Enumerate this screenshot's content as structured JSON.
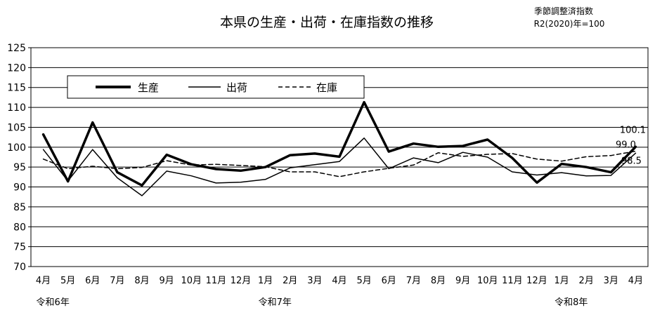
{
  "chart_data": {
    "type": "line",
    "title": "本県の生産・出荷・在庫指数の推移",
    "note_lines": [
      "季節調整済指数",
      "R2(2020)年=100"
    ],
    "ylim": [
      70,
      125
    ],
    "yticks": [
      70,
      75,
      80,
      85,
      90,
      95,
      100,
      105,
      110,
      115,
      120,
      125
    ],
    "grid": true,
    "legend_position": "top-left",
    "categories": [
      "4月",
      "5月",
      "6月",
      "7月",
      "8月",
      "9月",
      "10月",
      "11月",
      "12月",
      "1月",
      "2月",
      "3月",
      "4月",
      "5月",
      "6月",
      "7月",
      "8月",
      "9月",
      "10月",
      "11月",
      "12月",
      "1月",
      "2月",
      "3月",
      "4月"
    ],
    "year_labels": [
      {
        "index": 0,
        "label": "令和6年"
      },
      {
        "index": 9,
        "label": "令和7年"
      },
      {
        "index": 21,
        "label": "令和8年"
      }
    ],
    "series": [
      {
        "name": "生産",
        "style": "bold",
        "color": "#000000",
        "values": [
          103.2,
          91.4,
          106.2,
          93.7,
          90.4,
          98.1,
          95.7,
          94.5,
          94.1,
          95.0,
          98.0,
          98.4,
          97.6,
          111.3,
          98.9,
          100.9,
          100.1,
          100.3,
          101.9,
          97.3,
          91.1,
          95.8,
          95.0,
          93.7,
          100.1
        ]
      },
      {
        "name": "出荷",
        "style": "thin",
        "color": "#000000",
        "values": [
          99.4,
          91.5,
          99.4,
          92.3,
          87.8,
          94.0,
          92.8,
          91.0,
          91.2,
          91.9,
          94.8,
          95.6,
          96.4,
          102.3,
          94.6,
          97.3,
          96.1,
          98.7,
          97.5,
          93.8,
          93.0,
          93.6,
          92.8,
          92.9,
          98.5
        ]
      },
      {
        "name": "在庫",
        "style": "dashed",
        "color": "#000000",
        "values": [
          97.0,
          94.6,
          95.2,
          94.6,
          94.9,
          96.6,
          95.5,
          95.7,
          95.4,
          95.1,
          93.8,
          93.8,
          92.6,
          93.8,
          94.7,
          95.5,
          98.6,
          97.7,
          98.2,
          98.4,
          97.0,
          96.5,
          97.6,
          97.9,
          99.0
        ]
      }
    ],
    "data_labels": [
      {
        "series": 0,
        "index": 24,
        "text": "100.1"
      },
      {
        "series": 2,
        "index": 24,
        "text": "99.0"
      },
      {
        "series": 1,
        "index": 24,
        "text": "98.5"
      }
    ]
  }
}
